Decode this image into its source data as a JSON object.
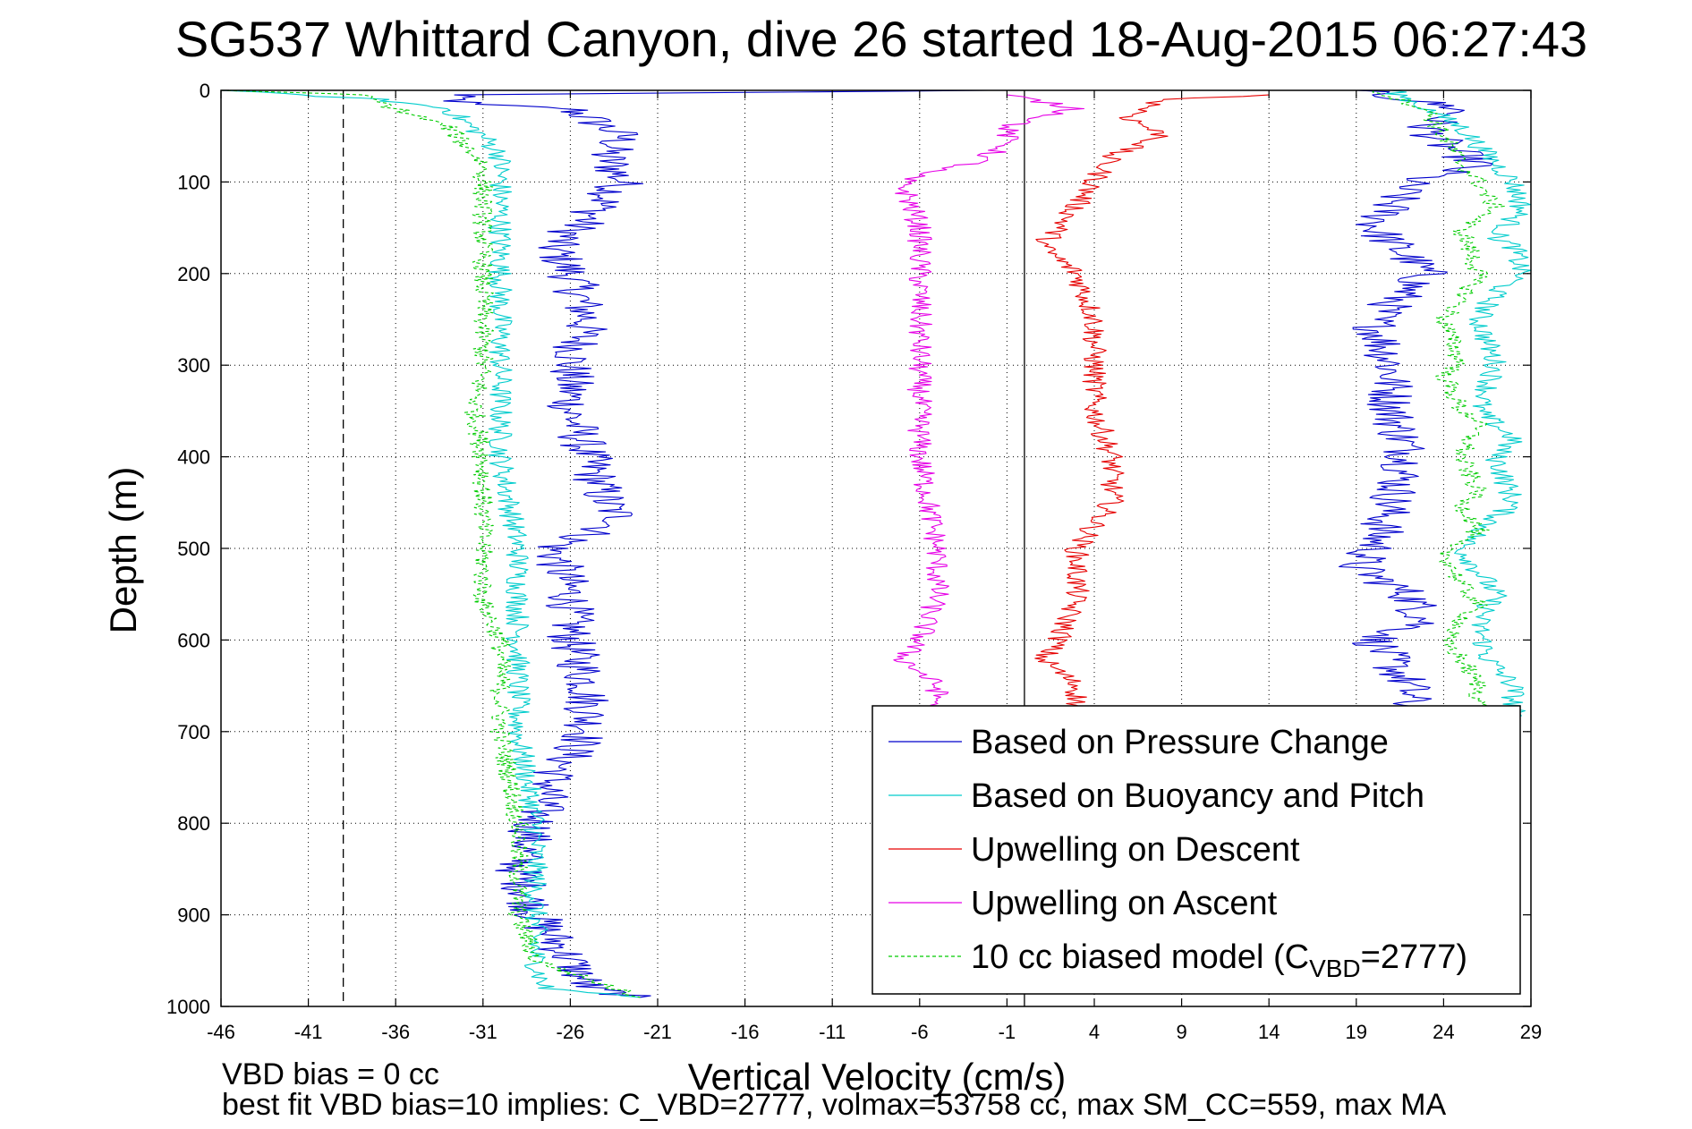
{
  "chart_data": {
    "type": "line",
    "title": "SG537 Whittard Canyon, dive 26 started 18-Aug-2015 06:27:43",
    "xlabel": "Vertical Velocity (cm/s)",
    "ylabel": "Depth (m)",
    "xlim": [
      -46,
      29
    ],
    "ylim": [
      0,
      1000
    ],
    "y_reversed": true,
    "grid": "dotted",
    "x_ticks": [
      -46,
      -41,
      -36,
      -31,
      -26,
      -21,
      -16,
      -11,
      -6,
      -1,
      4,
      9,
      14,
      19,
      24,
      29
    ],
    "y_ticks": [
      0,
      100,
      200,
      300,
      400,
      500,
      600,
      700,
      800,
      900,
      1000
    ],
    "reference_lines": [
      {
        "type": "vertical",
        "x": -39,
        "style": "dashed",
        "color": "#000000"
      },
      {
        "type": "vertical",
        "x": 0,
        "style": "solid",
        "color": "#000000"
      }
    ],
    "legend_position": "bottom-right",
    "series": [
      {
        "name": "Based on Pressure Change",
        "color": "#0000cc",
        "style": "solid",
        "noise": 1.4,
        "segments": [
          {
            "depth": [
              0,
              5,
              15,
              20,
              30,
              50,
              70,
              100,
              140,
              170,
              200,
              250,
              300,
              350,
              400,
              450,
              470,
              500,
              550,
              600,
              650,
              700,
              750,
              800,
              850,
              900,
              950,
              980,
              990
            ],
            "x": [
              -2,
              -33,
              -32,
              -26,
              -25,
              -23,
              -24,
              -23,
              -25,
              -27,
              -26,
              -25,
              -26,
              -26,
              -25,
              -24,
              -23,
              -27,
              -26,
              -26,
              -25,
              -25,
              -27,
              -28,
              -29,
              -28,
              -26,
              -25,
              -22
            ]
          },
          {
            "depth": [
              0,
              10,
              20,
              40,
              60,
              80,
              100,
              150,
              200,
              250,
              300,
              350,
              400,
              450,
              500,
              520,
              550,
              580,
              600,
              650,
              680
            ],
            "x": [
              19,
              22,
              25,
              23,
              24,
              26,
              22,
              20,
              23,
              20,
              21,
              21,
              22,
              21,
              20,
              19,
              22,
              23,
              20,
              22,
              22
            ]
          }
        ]
      },
      {
        "name": "Based on Buoyancy and Pitch",
        "color": "#00cccc",
        "style": "solid",
        "noise": 0.7,
        "segments": [
          {
            "depth": [
              0,
              10,
              20,
              50,
              70,
              90,
              100,
              150,
              200,
              300,
              400,
              500,
              600,
              700,
              800,
              900,
              950,
              980,
              990
            ],
            "x": [
              -46,
              -37,
              -33,
              -31,
              -30,
              -30,
              -30,
              -30,
              -30,
              -30,
              -30,
              -29,
              -29,
              -29,
              -28,
              -28,
              -28,
              -27.5,
              -22
            ]
          },
          {
            "depth": [
              0,
              20,
              40,
              60,
              80,
              100,
              130,
              160,
              170,
              200,
              220,
              250,
              300,
              350,
              380,
              400,
              450,
              500,
              550,
              580,
              620,
              650,
              690
            ],
            "x": [
              21,
              23,
              25,
              26,
              27,
              28,
              28.5,
              27,
              28,
              28.5,
              27,
              26,
              27,
              26,
              28,
              27,
              28,
              25,
              27,
              26,
              26.5,
              28,
              28
            ]
          }
        ]
      },
      {
        "name": "Upwelling on Descent",
        "color": "#e60000",
        "style": "solid",
        "noise": 0.7,
        "segments": [
          {
            "depth": [
              5,
              10,
              30,
              50,
              70,
              100,
              150,
              170,
              200,
              250,
              300,
              350,
              400,
              450,
              500,
              550,
              600,
              620,
              650,
              680
            ],
            "x": [
              14,
              8,
              6,
              8,
              5,
              4,
              2,
              1,
              3,
              4,
              4,
              4,
              5,
              5,
              3,
              3,
              2,
              1,
              3,
              3
            ]
          }
        ]
      },
      {
        "name": "Upwelling on Ascent",
        "color": "#e600e6",
        "style": "solid",
        "noise": 0.7,
        "segments": [
          {
            "depth": [
              5,
              20,
              40,
              60,
              80,
              90,
              100,
              150,
              200,
              300,
              400,
              500,
              550,
              600,
              620,
              650,
              680
            ],
            "x": [
              -1,
              3,
              -1,
              -1,
              -3,
              -6,
              -7,
              -6,
              -6,
              -6,
              -6,
              -5,
              -5,
              -6,
              -7,
              -5,
              -5
            ]
          }
        ]
      },
      {
        "name": "10 cc biased model (C",
        "name_sub": "VBD",
        "name_suffix": "=2777)",
        "color": "#00cc00",
        "style": "dashed",
        "noise": 0.6,
        "segments": [
          {
            "depth": [
              0,
              5,
              20,
              40,
              60,
              80,
              100,
              150,
              200,
              300,
              350,
              400,
              500,
              560,
              600,
              700,
              800,
              850,
              900,
              950,
              990
            ],
            "x": [
              -46,
              -38,
              -36,
              -33,
              -32,
              -31,
              -31,
              -31,
              -31,
              -31,
              -31.5,
              -31,
              -31,
              -31,
              -30,
              -30,
              -29,
              -29,
              -29,
              -28,
              -22
            ]
          },
          {
            "depth": [
              0,
              20,
              50,
              80,
              100,
              130,
              150,
              200,
              230,
              250,
              300,
              310,
              350,
              360,
              400,
              440,
              450,
              480,
              500,
              540,
              560,
              600,
              620,
              650,
              680
            ],
            "x": [
              20,
              23,
              24,
              25,
              26,
              27,
              25,
              26,
              25,
              24,
              25,
              24,
              25,
              26,
              25,
              26,
              25,
              26,
              24,
              25,
              26,
              24,
              25,
              26,
              26
            ]
          }
        ]
      }
    ]
  },
  "footer": {
    "line1": "VBD bias = 0 cc",
    "line2": "best fit VBD bias=10 implies: C_VBD=2777, volmax=53758 cc, max SM_CC=559, max MA"
  },
  "colors": {
    "background": "#ffffff",
    "axes": "#000000",
    "grid": "#000000"
  }
}
